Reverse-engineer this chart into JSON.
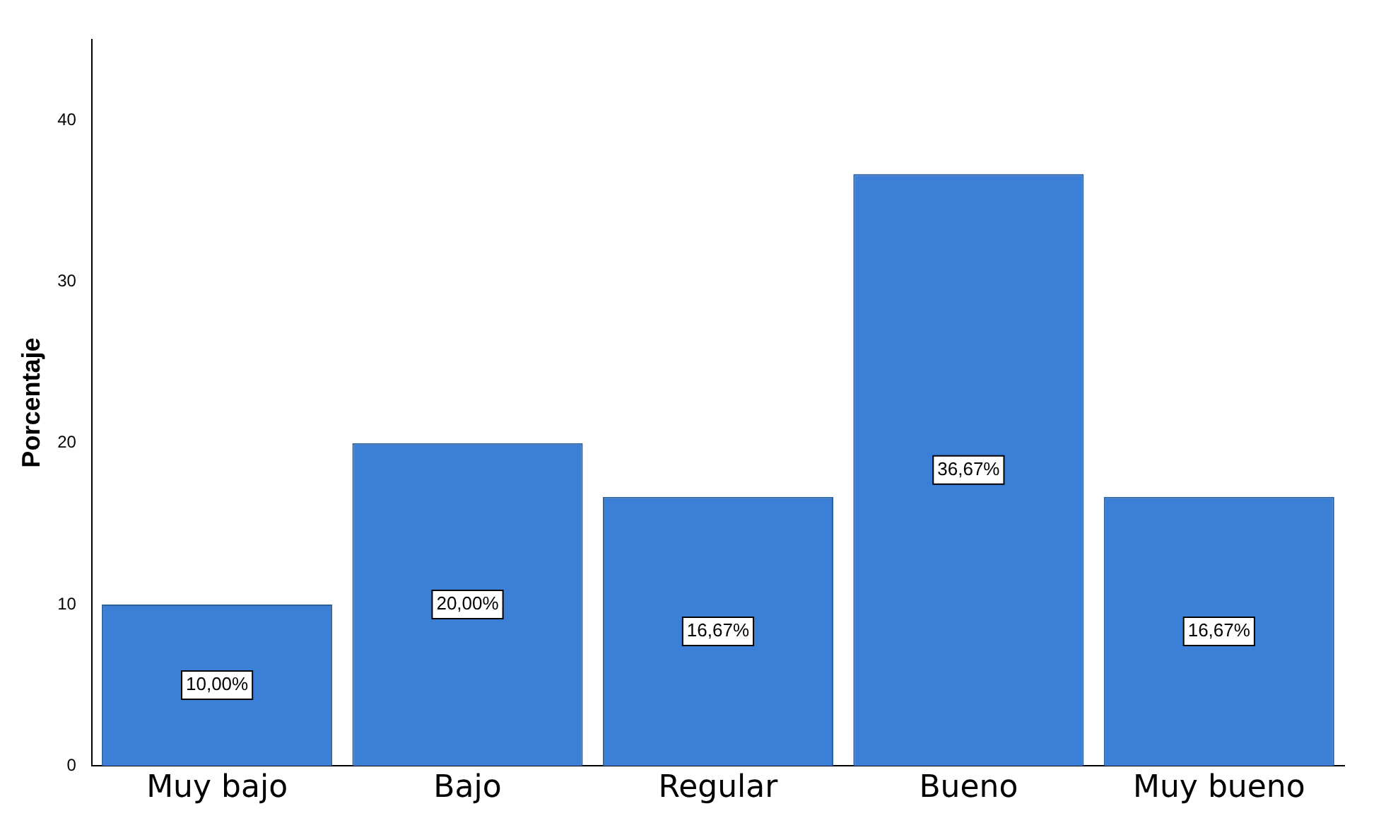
{
  "chart_data": {
    "type": "bar",
    "ylabel": "Porcentaje",
    "categories": [
      "Muy bajo",
      "Bajo",
      "Regular",
      "Bueno",
      "Muy bueno"
    ],
    "values": [
      10,
      20,
      16.67,
      36.67,
      16.67
    ],
    "value_labels": [
      "10,00%",
      "20,00%",
      "16,67%",
      "36,67%",
      "16,67%"
    ],
    "color": "#3b80d6",
    "ylim": [
      0,
      45
    ],
    "yticks": [
      0,
      10,
      20,
      30,
      40
    ],
    "grid": false,
    "legend": false
  }
}
